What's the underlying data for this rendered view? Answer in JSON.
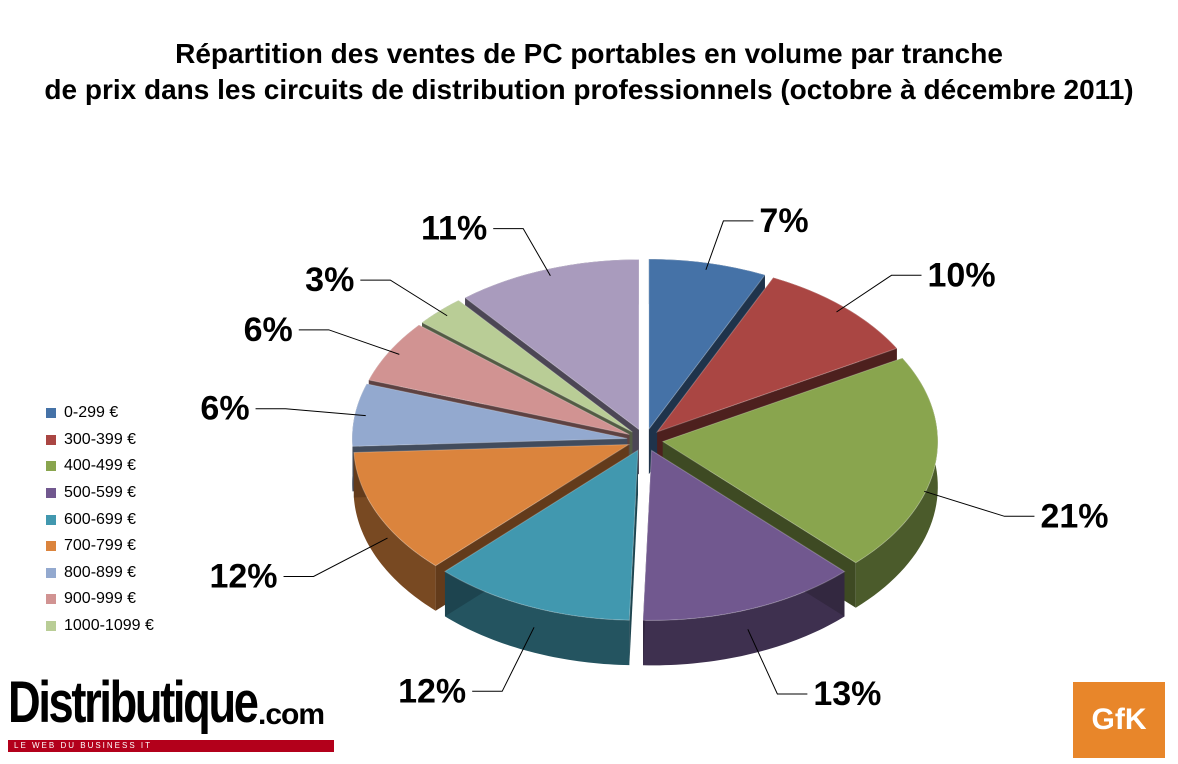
{
  "chart_data": {
    "type": "pie",
    "title_line1": "Répartition des ventes de PC portables en volume par tranche",
    "title_line2": "de prix dans les circuits de distribution professionnels (octobre à décembre 2011)",
    "slices": [
      {
        "label": "0-299 €",
        "value": 7,
        "value_label": "7%",
        "color": "#4572a7"
      },
      {
        "label": "300-399 €",
        "value": 10,
        "value_label": "10%",
        "color": "#aa4643"
      },
      {
        "label": "400-499 €",
        "value": 21,
        "value_label": "21%",
        "color": "#89a54e"
      },
      {
        "label": "500-599 €",
        "value": 13,
        "value_label": "13%",
        "color": "#71588f"
      },
      {
        "label": "600-699 €",
        "value": 12,
        "value_label": "12%",
        "color": "#4198af"
      },
      {
        "label": "700-799 €",
        "value": 12,
        "value_label": "12%",
        "color": "#db843d"
      },
      {
        "label": "800-899 €",
        "value": 6,
        "value_label": "6%",
        "color": "#93a9cf"
      },
      {
        "label": "900-999 €",
        "value": 6,
        "value_label": "6%",
        "color": "#d19392"
      },
      {
        "label": "1000-1099 €",
        "value": 3,
        "value_label": "3%",
        "color": "#b9cd96"
      },
      {
        "label": "",
        "value": 11,
        "value_label": "11%",
        "color": "#a99bbd"
      }
    ],
    "legend_placement": "left",
    "style": "exploded-3d"
  },
  "logos": {
    "left_name": "Distributique",
    "left_suffix": ".com",
    "left_tagline": "LE WEB DU BUSINESS IT",
    "right_name": "GfK"
  }
}
